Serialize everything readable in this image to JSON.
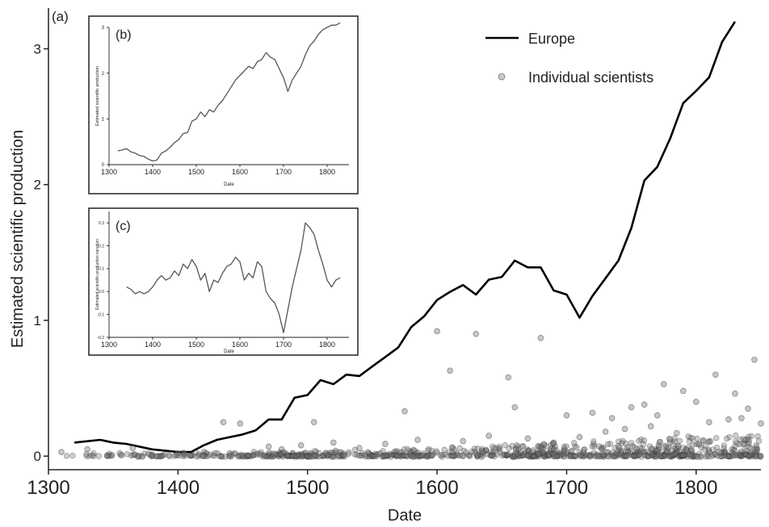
{
  "chart_data": [
    {
      "panel_label": "(a)",
      "type": "line",
      "xlabel": "Date",
      "ylabel": "Estimated scientific production",
      "xlim": [
        1300,
        1850
      ],
      "ylim": [
        -0.1,
        3.3
      ],
      "xticks": [
        1300,
        1400,
        1500,
        1600,
        1700,
        1800
      ],
      "yticks": [
        0,
        1,
        2,
        3
      ],
      "legend_position": "top-right",
      "legend": [
        {
          "label": "Europe",
          "kind": "line",
          "color": "#000000"
        },
        {
          "label": "Individual scientists",
          "kind": "point",
          "color": "#888888"
        }
      ],
      "series": [
        {
          "name": "Europe",
          "kind": "line",
          "x": [
            1320,
            1330,
            1340,
            1350,
            1360,
            1370,
            1380,
            1390,
            1400,
            1410,
            1420,
            1430,
            1440,
            1450,
            1460,
            1470,
            1480,
            1490,
            1500,
            1510,
            1520,
            1530,
            1540,
            1550,
            1560,
            1570,
            1580,
            1590,
            1600,
            1610,
            1620,
            1630,
            1640,
            1650,
            1660,
            1670,
            1680,
            1690,
            1700,
            1710,
            1720,
            1730,
            1740,
            1750,
            1760,
            1770,
            1780,
            1790,
            1800,
            1810,
            1820,
            1830
          ],
          "y": [
            0.1,
            0.11,
            0.12,
            0.1,
            0.09,
            0.07,
            0.05,
            0.04,
            0.03,
            0.03,
            0.08,
            0.12,
            0.14,
            0.16,
            0.19,
            0.27,
            0.27,
            0.43,
            0.45,
            0.56,
            0.53,
            0.6,
            0.59,
            0.66,
            0.73,
            0.8,
            0.95,
            1.03,
            1.15,
            1.21,
            1.26,
            1.19,
            1.3,
            1.32,
            1.44,
            1.39,
            1.39,
            1.22,
            1.19,
            1.02,
            1.18,
            1.31,
            1.44,
            1.68,
            2.03,
            2.13,
            2.34,
            2.6,
            2.69,
            2.79,
            3.05,
            3.2
          ]
        },
        {
          "name": "Individual scientists",
          "kind": "scatter",
          "x": [
            1600,
            1680,
            1630,
            1655,
            1610,
            1845,
            1815,
            1775,
            1790,
            1760,
            1435,
            1448,
            1505,
            1575,
            1660,
            1700,
            1750,
            1720,
            1735,
            1800,
            1830,
            1840,
            1770,
            1825,
            1310,
            1330,
            1355,
            1365,
            1380,
            1400,
            1420,
            1440,
            1470,
            1480,
            1495,
            1520,
            1540,
            1560,
            1585,
            1620,
            1640,
            1670,
            1690,
            1710,
            1730,
            1745,
            1765,
            1785,
            1810,
            1835,
            1850
          ],
          "y": [
            0.92,
            0.87,
            0.9,
            0.58,
            0.63,
            0.71,
            0.6,
            0.53,
            0.48,
            0.38,
            0.25,
            0.24,
            0.25,
            0.33,
            0.36,
            0.3,
            0.36,
            0.32,
            0.28,
            0.4,
            0.46,
            0.35,
            0.3,
            0.27,
            0.03,
            0.05,
            0.02,
            0.06,
            0.01,
            0.02,
            0.03,
            0.02,
            0.07,
            0.05,
            0.08,
            0.1,
            0.06,
            0.09,
            0.12,
            0.11,
            0.15,
            0.13,
            0.1,
            0.14,
            0.18,
            0.2,
            0.22,
            0.17,
            0.25,
            0.28,
            0.24
          ],
          "note": "dense band of overlapping points between 0 and ~0.2 across 1480–1850"
        }
      ]
    },
    {
      "panel_label": "(b)",
      "type": "line",
      "xlabel": "Date",
      "ylabel": "Estimated scientific production",
      "xlim": [
        1300,
        1850
      ],
      "ylim": [
        0,
        3
      ],
      "xticks": [
        1300,
        1400,
        1500,
        1600,
        1700,
        1800
      ],
      "yticks": [
        0,
        1,
        2,
        3
      ],
      "series": [
        {
          "name": "",
          "x": [
            1320,
            1330,
            1340,
            1350,
            1360,
            1370,
            1380,
            1390,
            1400,
            1410,
            1420,
            1430,
            1440,
            1450,
            1460,
            1470,
            1480,
            1490,
            1500,
            1510,
            1520,
            1530,
            1540,
            1550,
            1560,
            1570,
            1580,
            1590,
            1600,
            1610,
            1620,
            1630,
            1640,
            1650,
            1660,
            1670,
            1680,
            1690,
            1700,
            1710,
            1720,
            1730,
            1740,
            1750,
            1760,
            1770,
            1780,
            1790,
            1800,
            1810,
            1820,
            1830
          ],
          "y": [
            0.3,
            0.32,
            0.35,
            0.28,
            0.25,
            0.2,
            0.18,
            0.12,
            0.08,
            0.1,
            0.25,
            0.3,
            0.38,
            0.48,
            0.55,
            0.68,
            0.7,
            0.95,
            1.0,
            1.15,
            1.05,
            1.2,
            1.15,
            1.3,
            1.4,
            1.55,
            1.7,
            1.85,
            1.95,
            2.05,
            2.15,
            2.1,
            2.25,
            2.3,
            2.45,
            2.35,
            2.3,
            2.1,
            1.9,
            1.6,
            1.85,
            2.0,
            2.15,
            2.4,
            2.6,
            2.7,
            2.85,
            2.95,
            3.0,
            3.05,
            3.05,
            3.1
          ]
        }
      ]
    },
    {
      "panel_label": "(c)",
      "type": "line",
      "xlabel": "Date",
      "ylabel": "Estimated scientific production variation",
      "xlim": [
        1300,
        1850
      ],
      "ylim": [
        -0.2,
        0.35
      ],
      "xticks": [
        1300,
        1400,
        1500,
        1600,
        1700,
        1800
      ],
      "yticks": [
        -0.2,
        -0.1,
        0.0,
        0.1,
        0.2,
        0.3
      ],
      "series": [
        {
          "name": "",
          "x": [
            1340,
            1350,
            1360,
            1370,
            1380,
            1390,
            1400,
            1410,
            1420,
            1430,
            1440,
            1450,
            1460,
            1470,
            1480,
            1490,
            1500,
            1510,
            1520,
            1530,
            1540,
            1550,
            1560,
            1570,
            1580,
            1590,
            1600,
            1610,
            1620,
            1630,
            1640,
            1650,
            1660,
            1670,
            1680,
            1690,
            1700,
            1710,
            1720,
            1730,
            1740,
            1750,
            1760,
            1770,
            1780,
            1790,
            1800,
            1810,
            1820,
            1830
          ],
          "y": [
            0.02,
            0.01,
            -0.01,
            0.0,
            -0.01,
            0.0,
            0.02,
            0.05,
            0.07,
            0.05,
            0.06,
            0.09,
            0.07,
            0.12,
            0.1,
            0.14,
            0.11,
            0.05,
            0.08,
            0.0,
            0.05,
            0.04,
            0.08,
            0.11,
            0.12,
            0.15,
            0.13,
            0.05,
            0.08,
            0.06,
            0.13,
            0.11,
            0.0,
            -0.03,
            -0.05,
            -0.1,
            -0.18,
            -0.08,
            0.02,
            0.1,
            0.18,
            0.3,
            0.28,
            0.25,
            0.18,
            0.12,
            0.05,
            0.02,
            0.05,
            0.06
          ]
        }
      ]
    }
  ]
}
